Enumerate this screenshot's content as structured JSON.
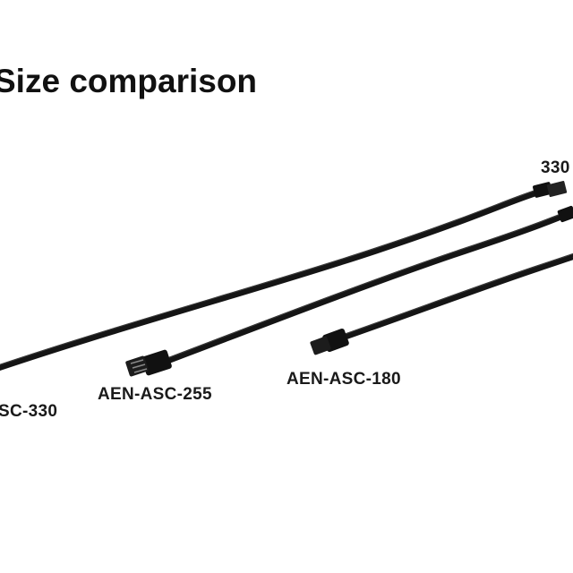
{
  "title": "Size comparison",
  "labels": [
    "SC-330",
    "AEN-ASC-255",
    "AEN-ASC-180",
    "330"
  ]
}
